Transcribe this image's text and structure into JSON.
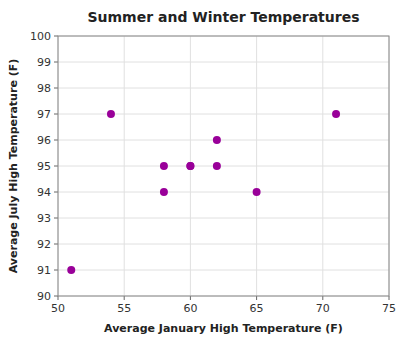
{
  "chart_data": {
    "type": "scatter",
    "title": "Summer and Winter Temperatures",
    "xlabel": "Average January High Temperature (F)",
    "ylabel": "Average July High Temperature (F)",
    "x": [
      51,
      54,
      58,
      58,
      60,
      60,
      62,
      62,
      65,
      71
    ],
    "values": [
      91,
      97,
      94,
      95,
      95,
      95,
      96,
      95,
      94,
      97
    ],
    "color": "#990099",
    "xlim": [
      50,
      75
    ],
    "ylim": [
      90,
      100
    ],
    "xticks": [
      50,
      55,
      60,
      65,
      70,
      75
    ],
    "yticks": [
      90,
      91,
      92,
      93,
      94,
      95,
      96,
      97,
      98,
      99,
      100
    ],
    "grid": true
  }
}
